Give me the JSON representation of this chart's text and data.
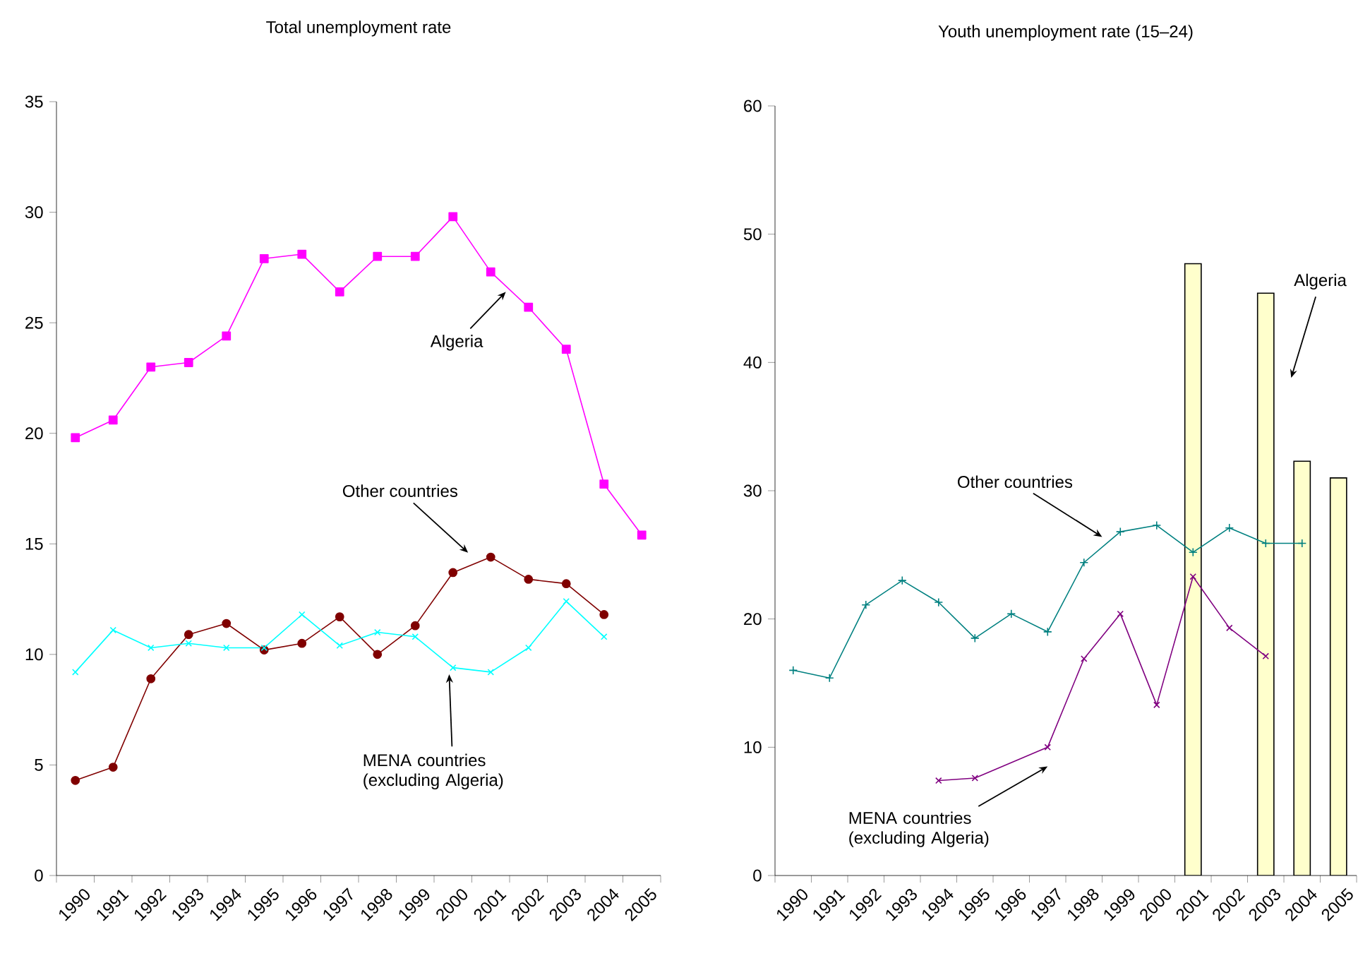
{
  "chart_data": [
    {
      "type": "line",
      "title": "Total unemployment rate",
      "categories": [
        "1990",
        "1991",
        "1992",
        "1993",
        "1994",
        "1995",
        "1996",
        "1997",
        "1998",
        "1999",
        "2000",
        "2001",
        "2002",
        "2003",
        "2004",
        "2005"
      ],
      "ylim": [
        0,
        35
      ],
      "yticks": [
        0,
        5,
        10,
        15,
        20,
        25,
        30,
        35
      ],
      "series": [
        {
          "name": "Algeria",
          "color": "#ff00ff",
          "marker": "square",
          "values": [
            19.8,
            20.6,
            23.0,
            23.2,
            24.4,
            27.9,
            28.1,
            26.4,
            28.0,
            28.0,
            29.8,
            27.3,
            25.7,
            23.8,
            17.7,
            15.4
          ]
        },
        {
          "name": "Other countries",
          "color": "#800000",
          "marker": "circle",
          "values": [
            4.3,
            4.9,
            8.9,
            10.9,
            11.4,
            10.2,
            10.5,
            11.7,
            10.0,
            11.3,
            13.7,
            14.4,
            13.4,
            13.2,
            11.8,
            null
          ]
        },
        {
          "name": "MENA countries (excluding Algeria)",
          "color": "#00ffff",
          "marker": "cross",
          "values": [
            9.2,
            11.1,
            10.3,
            10.5,
            10.3,
            10.3,
            11.8,
            10.4,
            11.0,
            10.8,
            9.4,
            9.2,
            10.3,
            12.4,
            10.8,
            null
          ]
        }
      ]
    },
    {
      "type": "line",
      "title": "Youth unemployment rate (15–24)",
      "categories": [
        "1990",
        "1991",
        "1992",
        "1993",
        "1994",
        "1995",
        "1996",
        "1997",
        "1998",
        "1999",
        "2000",
        "2001",
        "2002",
        "2003",
        "2004",
        "2005"
      ],
      "ylim": [
        0,
        60
      ],
      "yticks": [
        0,
        10,
        20,
        30,
        40,
        50,
        60
      ],
      "series": [
        {
          "name": "Algeria",
          "type": "bar",
          "color": "#ffffcc",
          "values": [
            null,
            null,
            null,
            null,
            null,
            null,
            null,
            null,
            null,
            null,
            null,
            47.7,
            null,
            45.4,
            32.3,
            31.0
          ]
        },
        {
          "name": "Other countries",
          "color": "#008080",
          "marker": "plus",
          "values": [
            16.0,
            15.4,
            21.1,
            23.0,
            21.3,
            18.5,
            20.4,
            19.0,
            24.4,
            26.8,
            27.3,
            25.2,
            27.1,
            25.9,
            25.9,
            null
          ]
        },
        {
          "name": "MENA countries (excluding Algeria)",
          "color": "#800080",
          "marker": "cross",
          "values": [
            null,
            null,
            null,
            null,
            7.4,
            7.6,
            null,
            10.0,
            16.9,
            20.4,
            13.3,
            23.3,
            19.3,
            17.1,
            null,
            null
          ]
        }
      ]
    }
  ]
}
